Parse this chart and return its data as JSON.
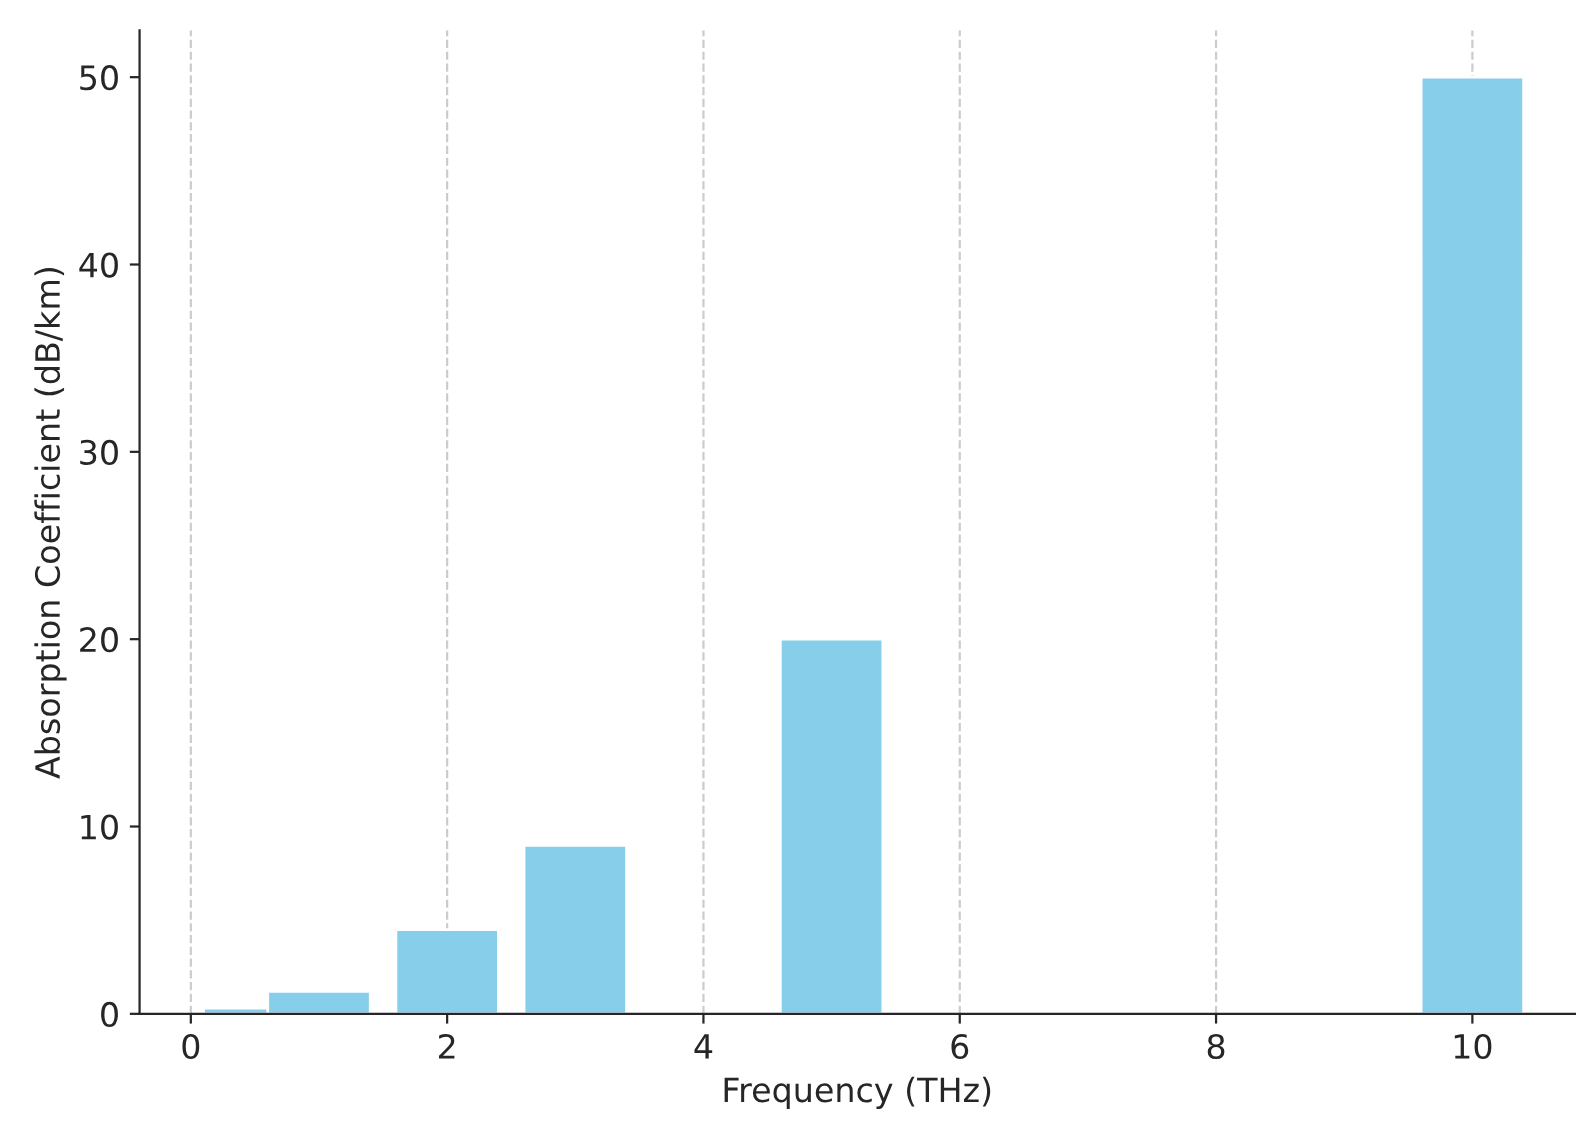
{
  "chart_data": {
    "type": "bar",
    "xlabel": "Frequency (THz)",
    "ylabel": "Absorption Coefficient (dB/km)",
    "x": [
      0.5,
      1,
      2,
      3,
      5,
      10
    ],
    "values": [
      0.3,
      1.2,
      4.5,
      9,
      20,
      50
    ],
    "color": "#87ceeb",
    "xlim": [
      -0.4,
      10.8
    ],
    "xticks": [
      0,
      2,
      4,
      6,
      8,
      10
    ],
    "ylim": [
      0,
      52.5
    ],
    "yticks": [
      0,
      10,
      20,
      30,
      40,
      50
    ],
    "grid": "x"
  }
}
